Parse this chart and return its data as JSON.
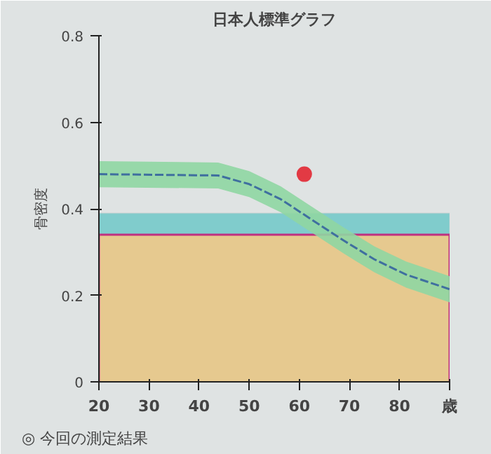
{
  "chart_data": {
    "type": "line",
    "title": "日本人標準グラフ",
    "ylabel": "骨密度",
    "xlim": [
      20,
      90
    ],
    "ylim": [
      0,
      0.8
    ],
    "xticks": [
      20,
      30,
      40,
      50,
      60,
      70,
      80,
      {
        "value": 90,
        "label": "歳"
      }
    ],
    "yticks": [
      0,
      0.2,
      0.4,
      0.6,
      0.8
    ],
    "grid": false,
    "line_style": "dashed",
    "bands": [
      {
        "axis": "y",
        "from": 0.34,
        "to": 0.39,
        "color": "#80cccc"
      }
    ],
    "series": [
      {
        "type": "area",
        "color": "#e6c98f",
        "x": [
          20,
          90
        ],
        "values": [
          0.34,
          0.34
        ]
      },
      {
        "color": "#3f6f9f",
        "x": [
          20,
          43.8,
          50,
          56.3,
          62.6,
          68.8,
          75,
          81.3,
          90
        ],
        "values": [
          0.48,
          0.477,
          0.457,
          0.422,
          0.374,
          0.327,
          0.283,
          0.248,
          0.214
        ],
        "lower": [
          0.45,
          0.447,
          0.427,
          0.392,
          0.344,
          0.297,
          0.253,
          0.218,
          0.184
        ],
        "upper": [
          0.51,
          0.507,
          0.487,
          0.452,
          0.404,
          0.357,
          0.313,
          0.278,
          0.244
        ]
      },
      {
        "type": "scatter",
        "color": "#e23a44",
        "x": [
          61
        ],
        "values": [
          0.48
        ]
      }
    ],
    "annotations": [
      "◎ 今回の測定結果"
    ]
  }
}
